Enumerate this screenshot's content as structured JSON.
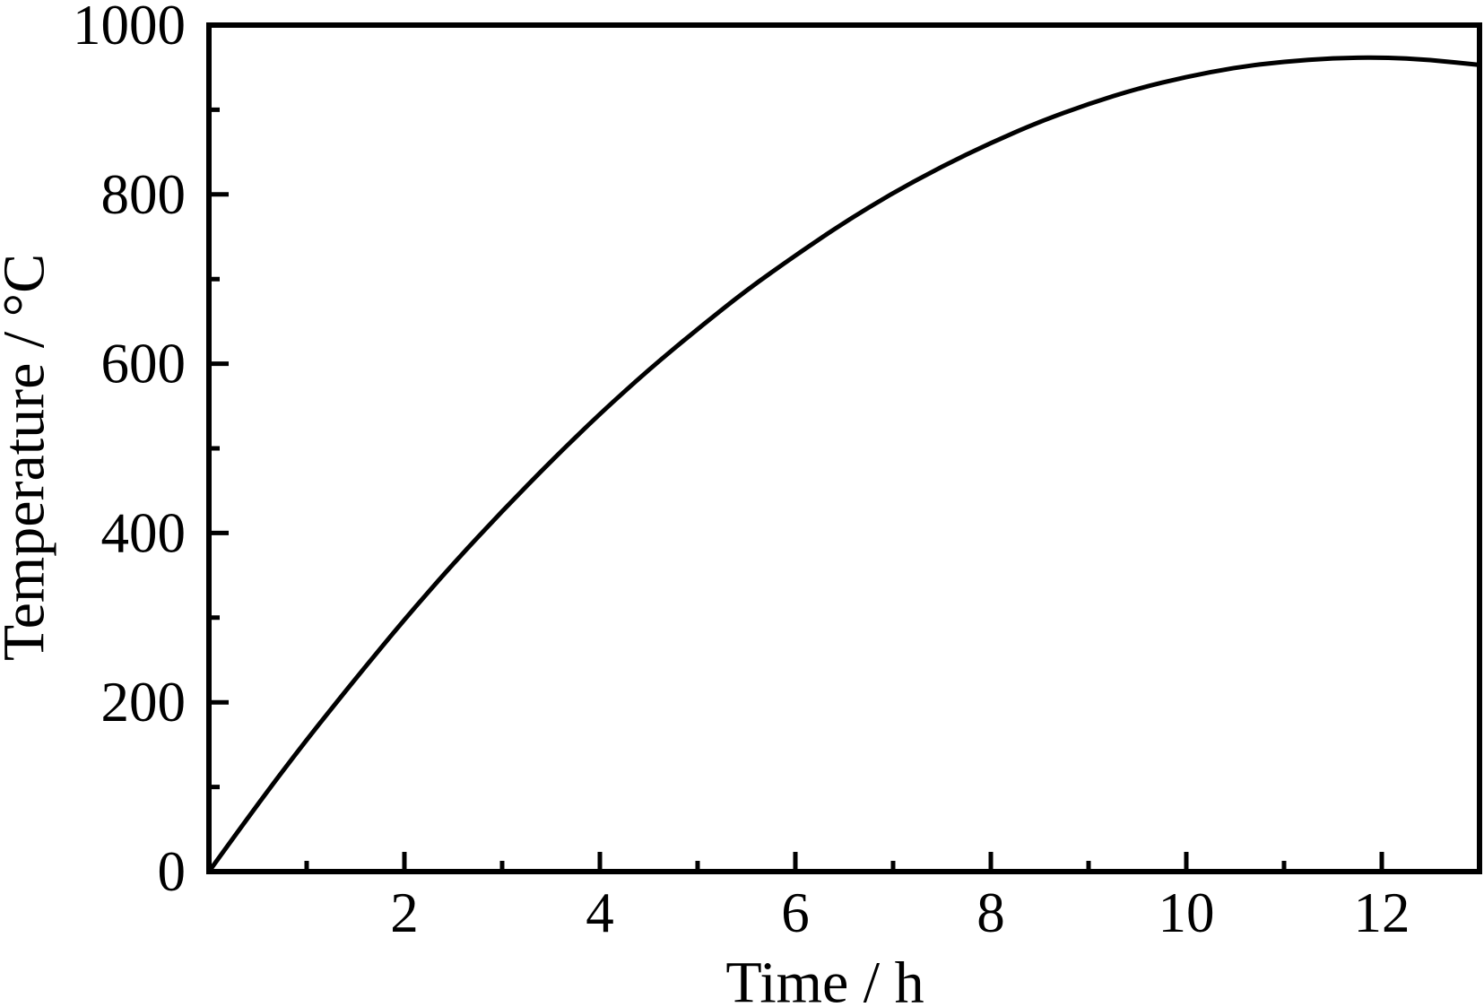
{
  "figure": {
    "background": "#ffffff",
    "foreground": "#000000"
  },
  "chart_data": {
    "type": "line",
    "title": "",
    "xlabel": "Time / h",
    "ylabel": "Temperature / °C",
    "series": [
      {
        "name": "Temperature",
        "x": [
          0,
          0.5,
          1,
          1.5,
          2,
          2.5,
          3,
          3.5,
          4,
          4.5,
          5,
          5.5,
          6,
          6.5,
          7,
          7.5,
          8,
          8.5,
          9,
          9.5,
          10,
          10.5,
          11,
          11.5,
          12,
          12.5,
          13
        ],
        "y": [
          0,
          80,
          156,
          228,
          298,
          364,
          426,
          485,
          541,
          593,
          641,
          687,
          728,
          767,
          802,
          833,
          861,
          886,
          907,
          925,
          939,
          950,
          957,
          961,
          962,
          959,
          953
        ]
      }
    ],
    "xlim": [
      0,
      13
    ],
    "ylim": [
      0,
      1000
    ],
    "x_major_ticks": [
      2,
      4,
      6,
      8,
      10,
      12
    ],
    "x_minor_ticks": [
      1,
      3,
      5,
      7,
      9,
      11
    ],
    "y_major_ticks": [
      0,
      200,
      400,
      600,
      800,
      1000
    ],
    "y_minor_ticks": [
      100,
      300,
      500,
      700,
      900
    ],
    "grid": false,
    "legend": "none",
    "line_color": "#000000",
    "frame_color": "#000000",
    "tick_direction": "in"
  }
}
